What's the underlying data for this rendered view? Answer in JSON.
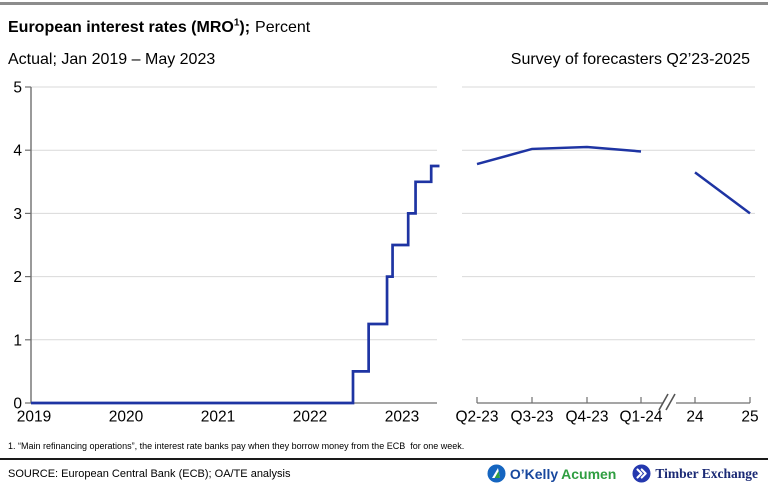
{
  "header": {
    "title_bold": "European interest rates (MRO",
    "title_sup": "1",
    "title_bold_end": ");",
    "title_unit": "Percent",
    "subtitle_left": "Actual; Jan 2019 – May 2023",
    "subtitle_right": "Survey of forecasters Q2’23-2025"
  },
  "chart_data": [
    {
      "type": "line",
      "subtype": "step",
      "panel": "left",
      "title": "Actual; Jan 2019 – May 2023",
      "unit": "percent",
      "ylim": [
        0,
        5
      ],
      "y_ticks": [
        "0",
        "1",
        "2",
        "3",
        "4",
        "5"
      ],
      "x_tick_labels": [
        "2019",
        "2020",
        "2021",
        "2022",
        "2023"
      ],
      "grid": true,
      "line_color": "#1e34a3",
      "steps": [
        {
          "date": "Jan 2019",
          "x": 2019.0,
          "value": 0.0
        },
        {
          "date": "Jul 2022",
          "x": 2022.5,
          "value": 0.5
        },
        {
          "date": "Sep 2022",
          "x": 2022.67,
          "value": 1.25
        },
        {
          "date": "Nov 2022",
          "x": 2022.87,
          "value": 2.0
        },
        {
          "date": "Dec 2022",
          "x": 2022.93,
          "value": 2.5
        },
        {
          "date": "Feb 2023",
          "x": 2023.1,
          "value": 3.0
        },
        {
          "date": "Mar 2023",
          "x": 2023.18,
          "value": 3.5
        },
        {
          "date": "May 2023",
          "x": 2023.35,
          "value": 3.75
        }
      ],
      "x_end": 2023.44
    },
    {
      "type": "line",
      "panel": "right",
      "title": "Survey of forecasters Q2’23-2025",
      "unit": "percent",
      "ylim": [
        0,
        5
      ],
      "grid": true,
      "line_color": "#1e34a3",
      "categories": [
        "Q2-23",
        "Q3-23",
        "Q4-23",
        "Q1-24",
        "24",
        "25"
      ],
      "axis_break_between": [
        "Q1-24",
        "24"
      ],
      "series": [
        {
          "name": "quarterly-forecast",
          "points": [
            [
              "Q2-23",
              3.78
            ],
            [
              "Q3-23",
              4.02
            ],
            [
              "Q4-23",
              4.05
            ],
            [
              "Q1-24",
              3.98
            ]
          ]
        },
        {
          "name": "annual-forecast",
          "points": [
            [
              "24",
              3.65
            ],
            [
              "25",
              3.0
            ]
          ]
        }
      ]
    }
  ],
  "footnote": "1. “Main refinancing operations”, the interest rate banks pay when they borrow money from the ECB  for one week.",
  "source": "SOURCE: European Central Bank (ECB); OA/TE analysis",
  "logos": {
    "okelly": {
      "part1": "O’Kelly",
      "part2": "Acumen",
      "icon": "sail-circle-icon",
      "color_blue": "#17479e",
      "color_green": "#2f9e41"
    },
    "timber": {
      "label": "Timber Exchange",
      "icon": "double-chevron-circle-icon",
      "color_navy": "#1b2a75",
      "icon_blue": "#2438ae"
    }
  }
}
